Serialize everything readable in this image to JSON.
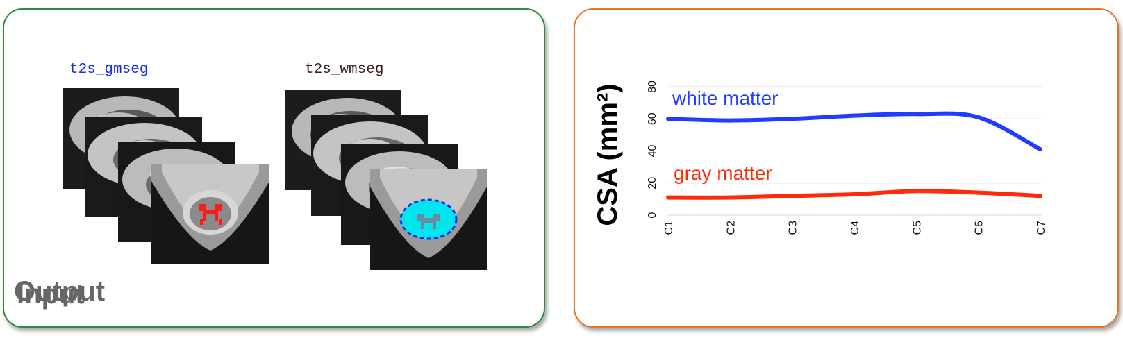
{
  "input_panel": {
    "title": "Input",
    "gm_label": "t2s_gmseg",
    "wm_label": "t2s_wmseg",
    "gm_label_color": "#1a2ee0",
    "wm_label_color": "#3a1a1a",
    "border_color": "#2e8b3a",
    "gm_seg_color": "#ff1a1a",
    "wm_seg_color": "#00e5ee",
    "wm_outline_color": "#1a2ee0"
  },
  "output_panel": {
    "title": "Output",
    "border_color": "#e07a2a"
  },
  "chart_data": {
    "type": "line",
    "ylabel": "CSA (mm²)",
    "ylim": [
      0,
      80
    ],
    "yticks": [
      "0",
      "20",
      "40",
      "60",
      "80"
    ],
    "categories": [
      "C1",
      "C2",
      "C3",
      "C4",
      "C5",
      "C6",
      "C7"
    ],
    "grid": true,
    "series": [
      {
        "name": "white matter",
        "color": "#1f3cff",
        "values": [
          60,
          59,
          60,
          62,
          63,
          61,
          41
        ]
      },
      {
        "name": "gray matter",
        "color": "#ff2a0a",
        "values": [
          11,
          11,
          12,
          13,
          15,
          14,
          12
        ]
      }
    ]
  }
}
